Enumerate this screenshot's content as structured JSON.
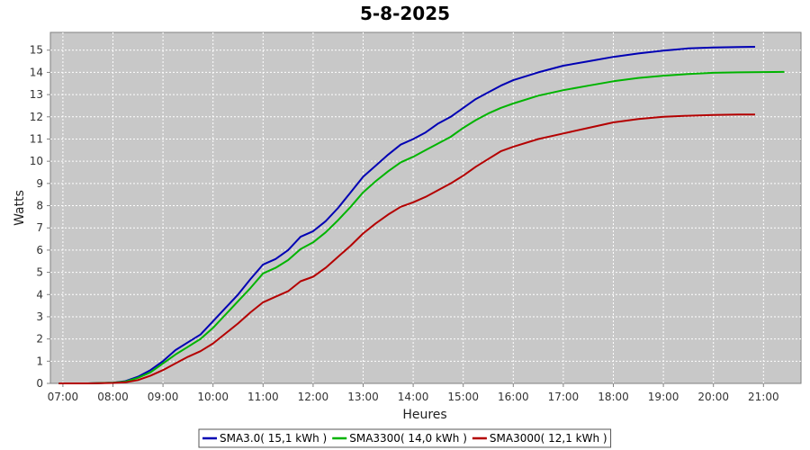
{
  "chart_data": {
    "type": "line",
    "title": "5-8-2025",
    "xlabel": "Heures",
    "ylabel": "Watts",
    "xlim": [
      "06:45",
      "21:45"
    ],
    "ylim": [
      0,
      15.8
    ],
    "x_ticks": [
      "07:00",
      "08:00",
      "09:00",
      "10:00",
      "11:00",
      "12:00",
      "13:00",
      "14:00",
      "15:00",
      "16:00",
      "17:00",
      "18:00",
      "19:00",
      "20:00",
      "21:00"
    ],
    "y_ticks": [
      0,
      1,
      2,
      3,
      4,
      5,
      6,
      7,
      8,
      9,
      10,
      11,
      12,
      13,
      14,
      15
    ],
    "grid": true,
    "legend_position": "bottom",
    "colors": {
      "plot_background": "#c8c8c8",
      "grid": "#ffffff",
      "axis": "#808080"
    },
    "series": [
      {
        "name": "SMA3.0( 15,1 kWh )",
        "color": "#0000b4",
        "points": [
          [
            "06:55",
            0
          ],
          [
            "07:30",
            0
          ],
          [
            "08:00",
            0.03
          ],
          [
            "08:15",
            0.1
          ],
          [
            "08:30",
            0.3
          ],
          [
            "08:45",
            0.6
          ],
          [
            "09:00",
            1.0
          ],
          [
            "09:15",
            1.5
          ],
          [
            "09:30",
            1.85
          ],
          [
            "09:45",
            2.2
          ],
          [
            "10:00",
            2.8
          ],
          [
            "10:15",
            3.4
          ],
          [
            "10:30",
            4.0
          ],
          [
            "10:45",
            4.7
          ],
          [
            "11:00",
            5.35
          ],
          [
            "11:15",
            5.6
          ],
          [
            "11:30",
            6.0
          ],
          [
            "11:45",
            6.6
          ],
          [
            "12:00",
            6.85
          ],
          [
            "12:15",
            7.3
          ],
          [
            "12:30",
            7.9
          ],
          [
            "12:45",
            8.6
          ],
          [
            "13:00",
            9.3
          ],
          [
            "13:15",
            9.8
          ],
          [
            "13:30",
            10.3
          ],
          [
            "13:45",
            10.75
          ],
          [
            "14:00",
            11.0
          ],
          [
            "14:15",
            11.3
          ],
          [
            "14:30",
            11.7
          ],
          [
            "14:45",
            12.0
          ],
          [
            "15:00",
            12.4
          ],
          [
            "15:15",
            12.8
          ],
          [
            "15:30",
            13.1
          ],
          [
            "15:45",
            13.4
          ],
          [
            "16:00",
            13.65
          ],
          [
            "16:30",
            14.0
          ],
          [
            "17:00",
            14.3
          ],
          [
            "17:30",
            14.5
          ],
          [
            "18:00",
            14.7
          ],
          [
            "18:30",
            14.85
          ],
          [
            "19:00",
            14.98
          ],
          [
            "19:30",
            15.08
          ],
          [
            "20:00",
            15.12
          ],
          [
            "20:30",
            15.14
          ],
          [
            "20:50",
            15.15
          ]
        ]
      },
      {
        "name": "SMA3300( 14,0 kWh )",
        "color": "#00b400",
        "points": [
          [
            "06:55",
            0
          ],
          [
            "07:30",
            0
          ],
          [
            "08:00",
            0.03
          ],
          [
            "08:15",
            0.08
          ],
          [
            "08:30",
            0.25
          ],
          [
            "08:45",
            0.5
          ],
          [
            "09:00",
            0.9
          ],
          [
            "09:15",
            1.3
          ],
          [
            "09:30",
            1.65
          ],
          [
            "09:45",
            2.0
          ],
          [
            "10:00",
            2.5
          ],
          [
            "10:15",
            3.1
          ],
          [
            "10:30",
            3.7
          ],
          [
            "10:45",
            4.3
          ],
          [
            "11:00",
            4.95
          ],
          [
            "11:15",
            5.2
          ],
          [
            "11:30",
            5.55
          ],
          [
            "11:45",
            6.05
          ],
          [
            "12:00",
            6.35
          ],
          [
            "12:15",
            6.8
          ],
          [
            "12:30",
            7.35
          ],
          [
            "12:45",
            7.95
          ],
          [
            "13:00",
            8.6
          ],
          [
            "13:15",
            9.1
          ],
          [
            "13:30",
            9.55
          ],
          [
            "13:45",
            9.95
          ],
          [
            "14:00",
            10.2
          ],
          [
            "14:15",
            10.5
          ],
          [
            "14:30",
            10.8
          ],
          [
            "14:45",
            11.1
          ],
          [
            "15:00",
            11.5
          ],
          [
            "15:15",
            11.85
          ],
          [
            "15:30",
            12.15
          ],
          [
            "15:45",
            12.4
          ],
          [
            "16:00",
            12.6
          ],
          [
            "16:30",
            12.95
          ],
          [
            "17:00",
            13.2
          ],
          [
            "17:30",
            13.4
          ],
          [
            "18:00",
            13.6
          ],
          [
            "18:30",
            13.75
          ],
          [
            "19:00",
            13.85
          ],
          [
            "19:30",
            13.93
          ],
          [
            "20:00",
            13.98
          ],
          [
            "20:30",
            14.0
          ],
          [
            "21:25",
            14.02
          ]
        ]
      },
      {
        "name": "SMA3000( 12,1 kWh )",
        "color": "#b40000",
        "points": [
          [
            "06:55",
            0
          ],
          [
            "07:30",
            0
          ],
          [
            "08:00",
            0.02
          ],
          [
            "08:15",
            0.05
          ],
          [
            "08:30",
            0.15
          ],
          [
            "08:45",
            0.35
          ],
          [
            "09:00",
            0.6
          ],
          [
            "09:15",
            0.9
          ],
          [
            "09:30",
            1.2
          ],
          [
            "09:45",
            1.45
          ],
          [
            "10:00",
            1.8
          ],
          [
            "10:15",
            2.25
          ],
          [
            "10:30",
            2.7
          ],
          [
            "10:45",
            3.2
          ],
          [
            "11:00",
            3.65
          ],
          [
            "11:15",
            3.9
          ],
          [
            "11:30",
            4.15
          ],
          [
            "11:45",
            4.6
          ],
          [
            "12:00",
            4.8
          ],
          [
            "12:15",
            5.2
          ],
          [
            "12:30",
            5.7
          ],
          [
            "12:45",
            6.2
          ],
          [
            "13:00",
            6.75
          ],
          [
            "13:15",
            7.2
          ],
          [
            "13:30",
            7.6
          ],
          [
            "13:45",
            7.95
          ],
          [
            "14:00",
            8.15
          ],
          [
            "14:15",
            8.4
          ],
          [
            "14:30",
            8.7
          ],
          [
            "14:45",
            9.0
          ],
          [
            "15:00",
            9.35
          ],
          [
            "15:15",
            9.75
          ],
          [
            "15:30",
            10.1
          ],
          [
            "15:45",
            10.45
          ],
          [
            "16:00",
            10.65
          ],
          [
            "16:30",
            11.0
          ],
          [
            "17:00",
            11.25
          ],
          [
            "17:30",
            11.5
          ],
          [
            "18:00",
            11.75
          ],
          [
            "18:30",
            11.9
          ],
          [
            "19:00",
            12.0
          ],
          [
            "19:30",
            12.05
          ],
          [
            "20:00",
            12.08
          ],
          [
            "20:30",
            12.1
          ],
          [
            "20:50",
            12.1
          ]
        ]
      }
    ]
  }
}
